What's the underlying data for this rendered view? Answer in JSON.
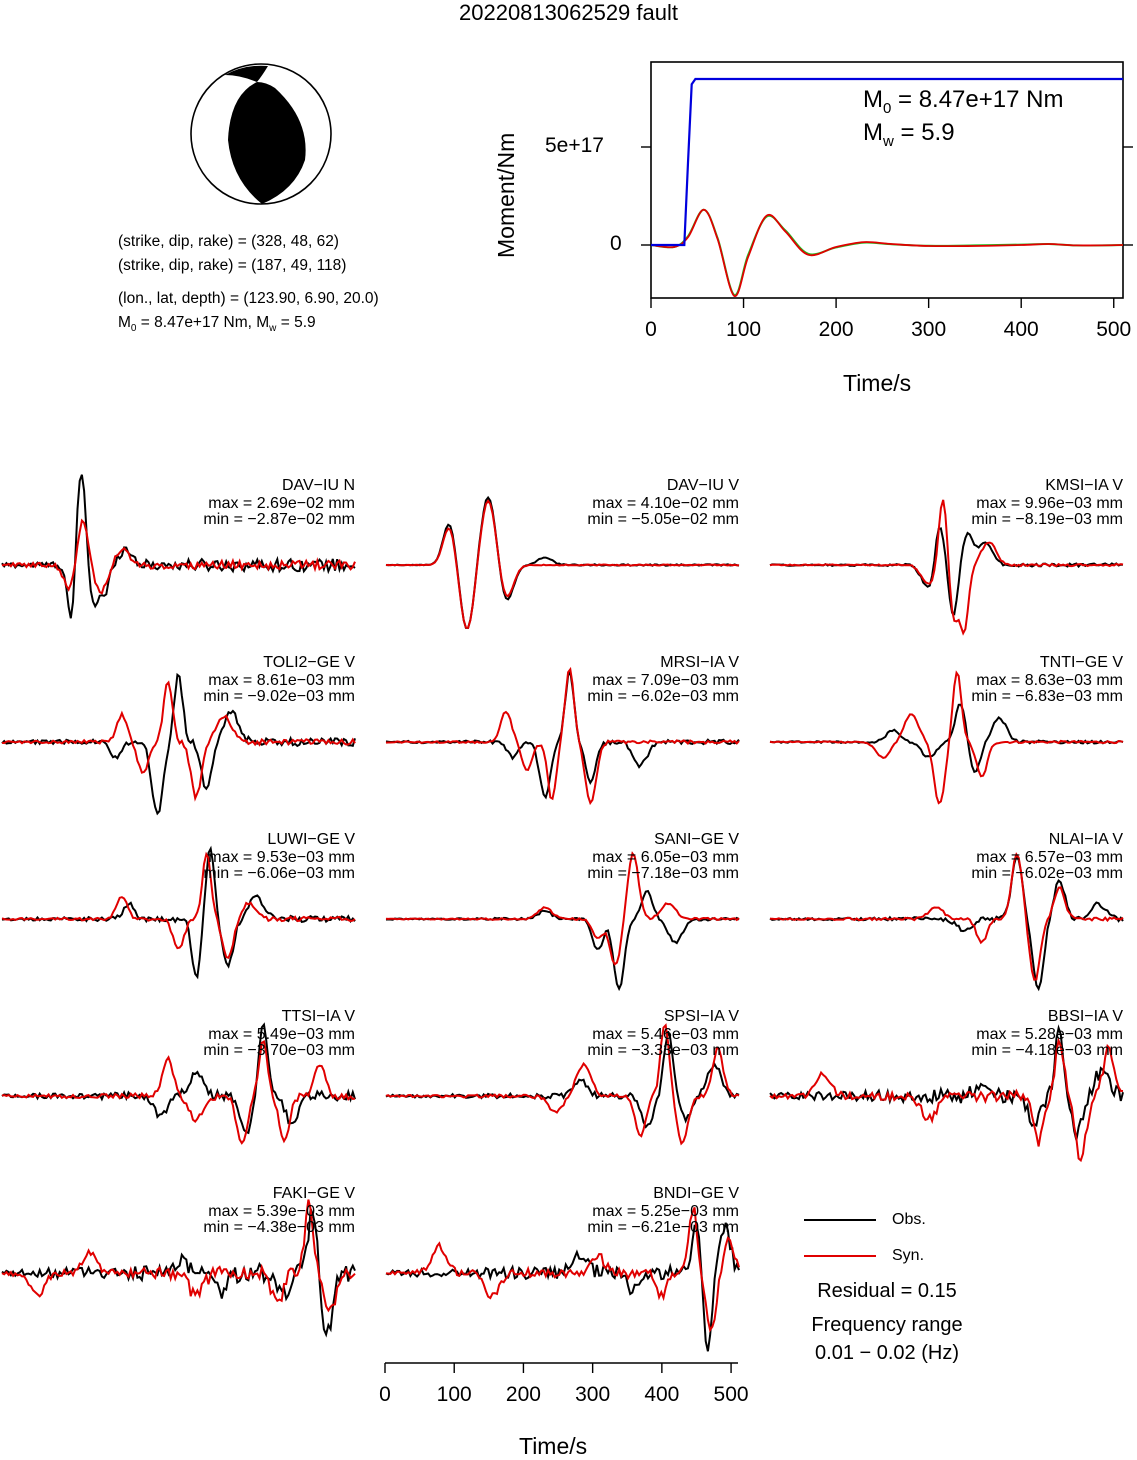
{
  "title": "20220813062529 fault",
  "params": {
    "plane1": "(strike, dip, rake) = (328, 48, 62)",
    "plane2": "(strike, dip, rake) = (187, 49, 118)",
    "location": "(lon., lat, depth) = (123.90, 6.90, 20.0)",
    "m0_prefix": "M",
    "m0_sub": "0",
    "m0_rest": " = 8.47e+17 Nm, M",
    "mw_sub": "w",
    "mw_rest": " = 5.9"
  },
  "moment_plot": {
    "ylabel": "Moment/Nm",
    "xlabel": "Time/s",
    "yticks": [
      "0",
      "5e+17"
    ],
    "xticks": [
      "0",
      "100",
      "200",
      "300",
      "400",
      "500"
    ],
    "annot_m0_main": "M",
    "annot_m0_sub": "0",
    "annot_m0_rest": " = 8.47e+17 Nm",
    "annot_mw_main": "M",
    "annot_mw_sub": "w",
    "annot_mw_rest": " = 5.9"
  },
  "stations": [
    {
      "name": "DAV−IU N",
      "max": "max = 2.69e−02 mm",
      "min": "min = −2.87e−02 mm"
    },
    {
      "name": "DAV−IU V",
      "max": "max = 4.10e−02 mm",
      "min": "min = −5.05e−02 mm"
    },
    {
      "name": "KMSI−IA V",
      "max": "max = 9.96e−03 mm",
      "min": "min = −8.19e−03 mm"
    },
    {
      "name": "TOLI2−GE V",
      "max": "max = 8.61e−03 mm",
      "min": "min = −9.02e−03 mm"
    },
    {
      "name": "MRSI−IA V",
      "max": "max = 7.09e−03 mm",
      "min": "min = −6.02e−03 mm"
    },
    {
      "name": "TNTI−GE V",
      "max": "max = 8.63e−03 mm",
      "min": "min = −6.83e−03 mm"
    },
    {
      "name": "LUWI−GE V",
      "max": "max = 9.53e−03 mm",
      "min": "min = −6.06e−03 mm"
    },
    {
      "name": "SANI−GE V",
      "max": "max = 6.05e−03 mm",
      "min": "min = −7.18e−03 mm"
    },
    {
      "name": "NLAI−IA V",
      "max": "max = 6.57e−03 mm",
      "min": "min = −6.02e−03 mm"
    },
    {
      "name": "TTSI−IA V",
      "max": "max = 5.49e−03 mm",
      "min": "min = −3.70e−03 mm"
    },
    {
      "name": "SPSI−IA V",
      "max": "max = 5.46e−03 mm",
      "min": "min = −3.33e−03 mm"
    },
    {
      "name": "BBSI−IA V",
      "max": "max = 5.28e−03 mm",
      "min": "min = −4.18e−03 mm"
    },
    {
      "name": "FAKI−GE V",
      "max": "max = 5.39e−03 mm",
      "min": "min = −4.38e−03 mm"
    },
    {
      "name": "BNDI−GE V",
      "max": "max = 5.25e−03 mm",
      "min": "min = −6.21e−03 mm"
    }
  ],
  "waveform_axis": {
    "xlabel": "Time/s",
    "xticks": [
      "0",
      "100",
      "200",
      "300",
      "400",
      "500"
    ]
  },
  "legend": {
    "obs": "Obs.",
    "syn": "Syn.",
    "residual": "Residual = 0.15",
    "freq_label": "Frequency range",
    "freq_value": "0.01 − 0.02 (Hz)"
  },
  "colors": {
    "observed": "#000000",
    "synthetic": "#e00000",
    "moment_cumulative": "#0000dd",
    "moment_rate_green": "#22bb22",
    "moment_rate_red": "#e00000",
    "beachball_fill": "#000000"
  },
  "chart_data": [
    {
      "type": "line",
      "title": "",
      "xlabel": "Time/s",
      "ylabel": "Moment/Nm",
      "xlim": [
        0,
        510
      ],
      "ylim": [
        -3e+17,
        9.5e+17
      ],
      "series": [
        {
          "x": [
            0,
            36,
            40,
            44,
            48,
            510
          ],
          "values": [
            0,
            0,
            4.2e+17,
            8.2e+17,
            8.47e+17,
            8.47e+17
          ]
        },
        {
          "x": [
            0,
            25,
            40,
            57,
            72,
            90,
            105,
            125,
            145,
            170,
            200,
            230,
            260,
            300,
            350,
            400,
            430,
            460,
            510
          ],
          "values": [
            0,
            -1e+16,
            4e+16,
            1.8e+17,
            3e+16,
            -2.6e+17,
            -6e+16,
            1.5e+17,
            7e+16,
            -5e+16,
            -1e+16,
            1.5e+16,
            5000000000000000.0,
            -5000000000000000.0,
            -5000000000000000.0,
            0.0,
            5000000000000000.0,
            -2000000000000000.0,
            0.0
          ]
        },
        {
          "x": [
            0,
            25,
            40,
            57,
            72,
            90,
            105,
            125,
            145,
            170,
            200,
            230,
            260,
            300,
            350,
            400,
            430,
            460,
            510
          ],
          "values": [
            0,
            -1e+16,
            4.5e+16,
            1.8e+17,
            3.5e+16,
            -2.55e+17,
            -5e+16,
            1.45e+17,
            7.5e+16,
            -4.5e+16,
            -1.2e+16,
            1.2e+16,
            4000000000000000.0,
            -4000000000000000.0,
            -2000000000000000.0,
            2000000000000000.0,
            5000000000000000.0,
            -2000000000000000.0,
            0.0
          ]
        }
      ]
    },
    {
      "type": "line",
      "title": "",
      "xlabel": "Time/s",
      "ylabel": "",
      "xlim": [
        0,
        510
      ],
      "ylim": [
        -1,
        1
      ],
      "series": [
        {
          "name": "Obs.",
          "x": [
            0,
            510
          ],
          "values": [
            0,
            0
          ]
        },
        {
          "name": "Syn.",
          "x": [
            0,
            510
          ],
          "values": [
            0,
            0
          ]
        }
      ]
    }
  ]
}
